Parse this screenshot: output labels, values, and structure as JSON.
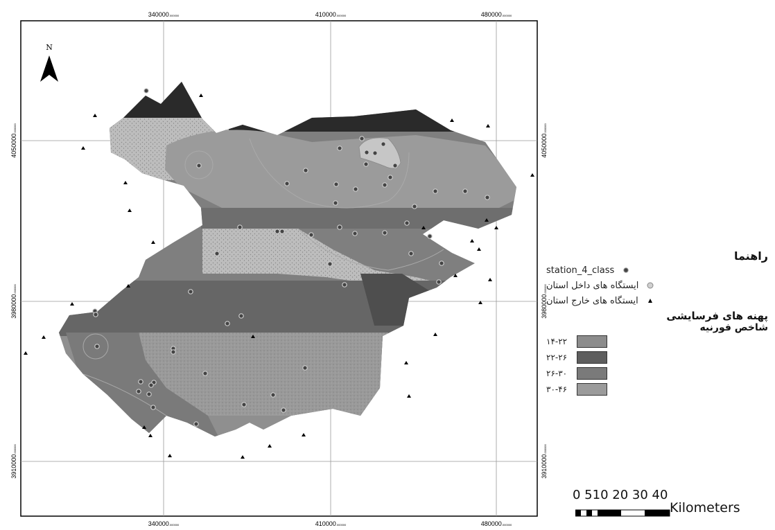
{
  "map": {
    "north_label": "N",
    "ticks_top": [
      {
        "major": "340000",
        "minor": ".000000"
      },
      {
        "major": "410000",
        "minor": ".000000"
      },
      {
        "major": "480000",
        "minor": ".000000"
      }
    ],
    "ticks_bottom": [
      {
        "major": "340000",
        "minor": ".000000"
      },
      {
        "major": "410000",
        "minor": ".000000"
      },
      {
        "major": "480000",
        "minor": ".000000"
      }
    ],
    "ticks_left": [
      {
        "major": "4050000",
        "minor": ".000000"
      },
      {
        "major": "3980000",
        "minor": ".000000"
      },
      {
        "major": "3910000",
        "minor": ".000000"
      }
    ],
    "ticks_right": [
      {
        "major": "4050000",
        "minor": ".000000"
      },
      {
        "major": "3980000",
        "minor": ".000000"
      },
      {
        "major": "3910000",
        "minor": ".000000"
      }
    ],
    "colors": {
      "class_14_22": "#8c8c8c",
      "class_22_26": "#5e5e5e",
      "class_26_30": "#7a7a7a",
      "class_30_46": "#9b9b9b",
      "light_zone": "#b8b8b8",
      "dark_zone": "#2a2a2a"
    }
  },
  "legend": {
    "title": "راهنما",
    "items": [
      {
        "label": "station_4_class",
        "icon": "station-class-icon"
      },
      {
        "label": "ایستگاه های داخل استان",
        "icon": "inside-station-icon"
      },
      {
        "label": "ایستگاه های خارج استان",
        "icon": "outside-station-icon"
      }
    ],
    "zones_heading": "پهنه های فرسایشی",
    "index_heading": "شاخص فورنیه",
    "classes": [
      {
        "label": "۱۴-۲۲",
        "color": "#8c8c8c"
      },
      {
        "label": "۲۲-۲۶",
        "color": "#5e5e5e"
      },
      {
        "label": "۲۶-۳۰",
        "color": "#7a7a7a"
      },
      {
        "label": "۳۰-۴۶",
        "color": "#9b9b9b"
      }
    ]
  },
  "scalebar": {
    "numbers": "0 510 20 30 40",
    "unit": "Kilometers"
  }
}
